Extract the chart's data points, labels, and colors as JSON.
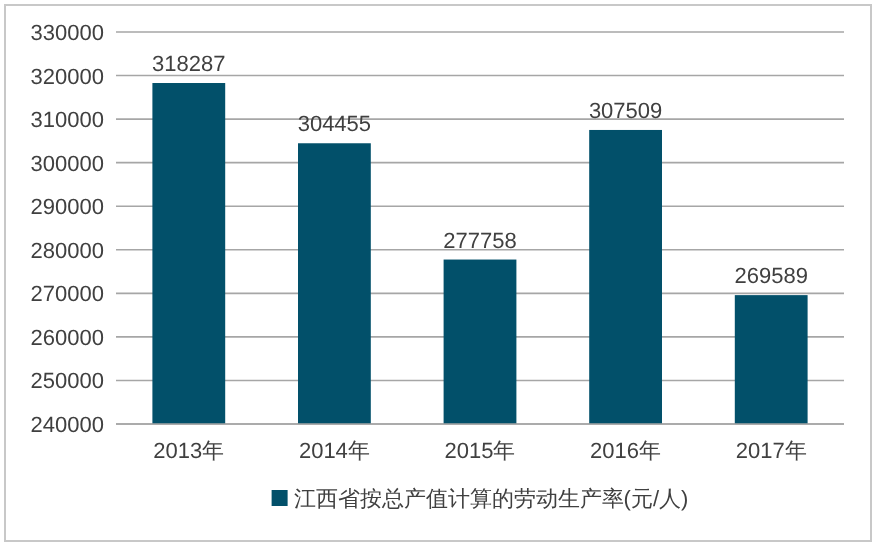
{
  "chart_data": {
    "type": "bar",
    "categories": [
      "2013年",
      "2014年",
      "2015年",
      "2016年",
      "2017年"
    ],
    "series": [
      {
        "name": "江西省按总产值计算的劳动生产率(元/人)",
        "color": "#02506a",
        "values": [
          318287,
          304455,
          277758,
          307509,
          269589
        ]
      }
    ],
    "ylim": [
      240000,
      330000
    ],
    "yticks": [
      240000,
      250000,
      260000,
      270000,
      280000,
      290000,
      300000,
      310000,
      320000,
      330000
    ],
    "grid": "y",
    "legend": "bottom",
    "data_labels": true
  }
}
